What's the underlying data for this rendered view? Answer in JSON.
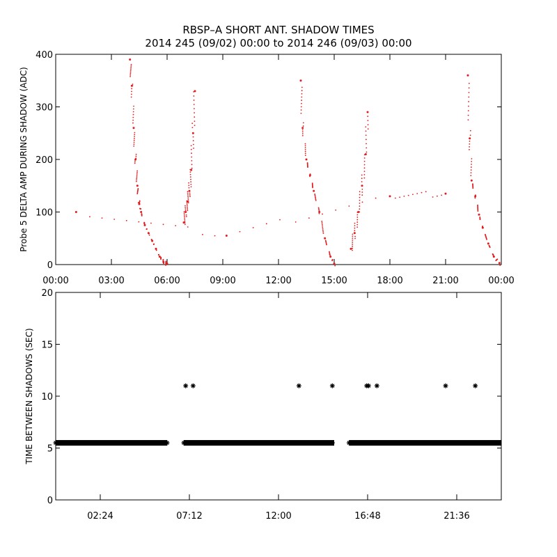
{
  "chart_title": [
    "RBSP–A SHORT ANT. SHADOW TIMES",
    "2014 245 (09/02) 00:00 to 2014 246 (09/03) 00:00"
  ],
  "colors": {
    "background": "#ffffff",
    "axes": "#000000",
    "shadow_amp": "#e41a1c",
    "interval_marker": "#000000"
  },
  "chart_data": [
    {
      "type": "scatter",
      "ylabel": "Probe 5 DELTA AMP DURING SHADOW (ADC)",
      "xlabel": "",
      "x_unit": "hours since 2014-09-02 00:00",
      "xlim": [
        0,
        24
      ],
      "ylim": [
        0,
        400
      ],
      "x_ticks": [
        0,
        3,
        6,
        9,
        12,
        15,
        18,
        21,
        24
      ],
      "x_tick_labels": [
        "00:00",
        "03:00",
        "06:00",
        "09:00",
        "12:00",
        "15:00",
        "18:00",
        "21:00",
        "00:00"
      ],
      "y_ticks": [
        0,
        100,
        200,
        300,
        400
      ],
      "y_tick_labels": [
        "0",
        "100",
        "200",
        "300",
        "400"
      ],
      "marker": "dot",
      "color": "#e41a1c",
      "series": [
        {
          "x": [
            4.0,
            4.1,
            4.2,
            4.3,
            4.4,
            4.5,
            4.6,
            4.8,
            5.0,
            5.2,
            5.4,
            5.6,
            5.8,
            6.0
          ],
          "y": [
            390,
            340,
            260,
            200,
            150,
            115,
            100,
            75,
            60,
            45,
            30,
            15,
            5,
            2
          ]
        },
        {
          "x": [
            6.9,
            7.0,
            7.1,
            7.2,
            7.3,
            7.4,
            7.5
          ],
          "y": [
            80,
            100,
            120,
            140,
            180,
            250,
            330
          ]
        },
        {
          "x": [
            13.2,
            13.3,
            13.5,
            13.7,
            13.9,
            14.2,
            14.5,
            14.8,
            15.0
          ],
          "y": [
            350,
            260,
            200,
            170,
            140,
            100,
            50,
            15,
            2
          ]
        },
        {
          "x": [
            15.9,
            16.1,
            16.3,
            16.5,
            16.7,
            16.8
          ],
          "y": [
            30,
            60,
            100,
            150,
            210,
            290
          ]
        },
        {
          "x": [
            22.2,
            22.3,
            22.4,
            22.6,
            22.8,
            23.0,
            23.3,
            23.6,
            23.9
          ],
          "y": [
            360,
            240,
            160,
            130,
            95,
            70,
            40,
            15,
            3
          ]
        },
        {
          "x": [
            1.1,
            9.2,
            18.0,
            21.0
          ],
          "y": [
            100,
            55,
            130,
            135
          ]
        }
      ]
    },
    {
      "type": "scatter",
      "ylabel": "TIME BETWEEN SHADOWS (SEC)",
      "xlabel": "",
      "x_unit": "hours since 2014-09-02 00:00",
      "xlim": [
        0,
        24
      ],
      "ylim": [
        0,
        20
      ],
      "x_ticks": [
        2.4,
        7.2,
        12.0,
        16.8,
        21.6
      ],
      "x_tick_labels": [
        "02:24",
        "07:12",
        "12:00",
        "16:48",
        "21:36"
      ],
      "y_ticks": [
        0,
        5,
        10,
        15,
        20
      ],
      "y_tick_labels": [
        "0",
        "5",
        "10",
        "15",
        "20"
      ],
      "marker": "asterisk",
      "color": "#000000",
      "baseline_value": 5.5,
      "baseline_segments": [
        [
          0.0,
          6.0
        ],
        [
          6.9,
          15.0
        ],
        [
          15.8,
          24.0
        ]
      ],
      "outliers": {
        "x": [
          7.0,
          7.4,
          13.1,
          14.9,
          16.75,
          16.85,
          17.3,
          21.0,
          22.6
        ],
        "y": [
          11,
          11,
          11,
          11,
          11,
          11,
          11,
          11,
          11
        ]
      }
    }
  ]
}
